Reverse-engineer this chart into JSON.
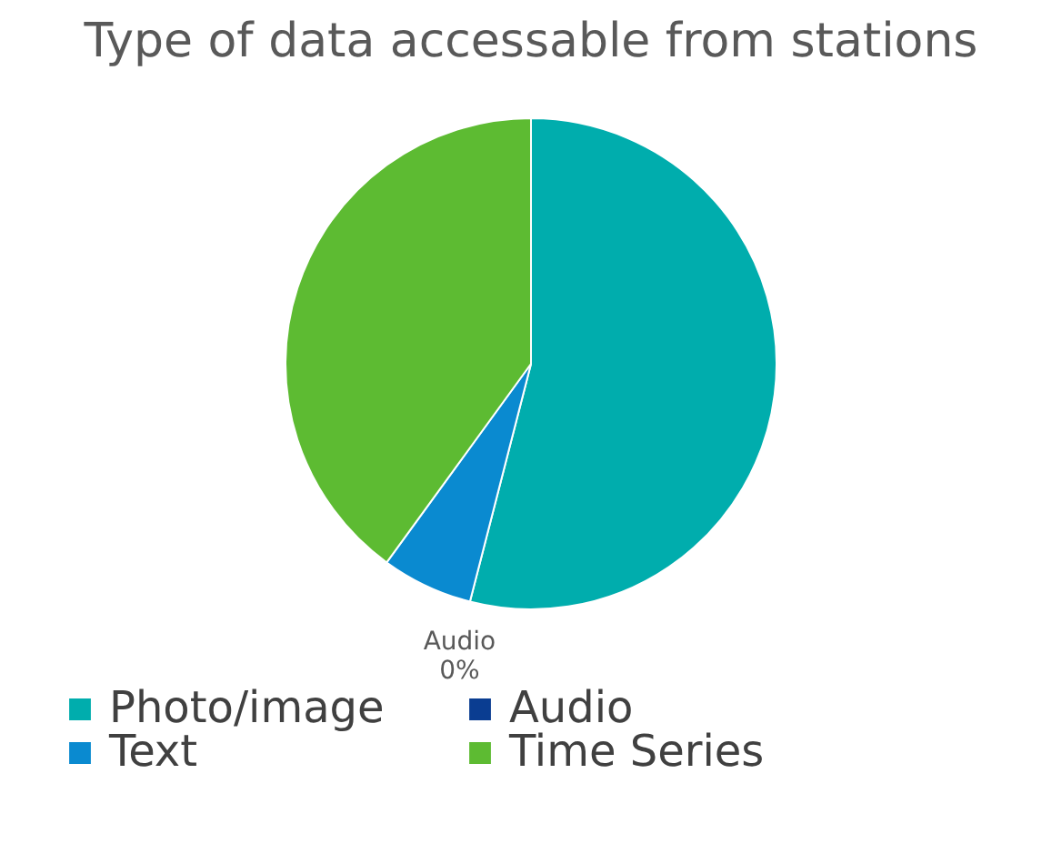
{
  "chart_data": {
    "type": "pie",
    "title": "Type of data accessable from stations",
    "categories": [
      "Photo/image",
      "Audio",
      "Text",
      "Time Series"
    ],
    "values": [
      54,
      0,
      6,
      40
    ],
    "colors": [
      "#00adad",
      "#0a3d91",
      "#0a8ad0",
      "#5dbb32"
    ],
    "value_labels": [
      null,
      "Audio 0%",
      null,
      null
    ],
    "legend": "bottom"
  }
}
